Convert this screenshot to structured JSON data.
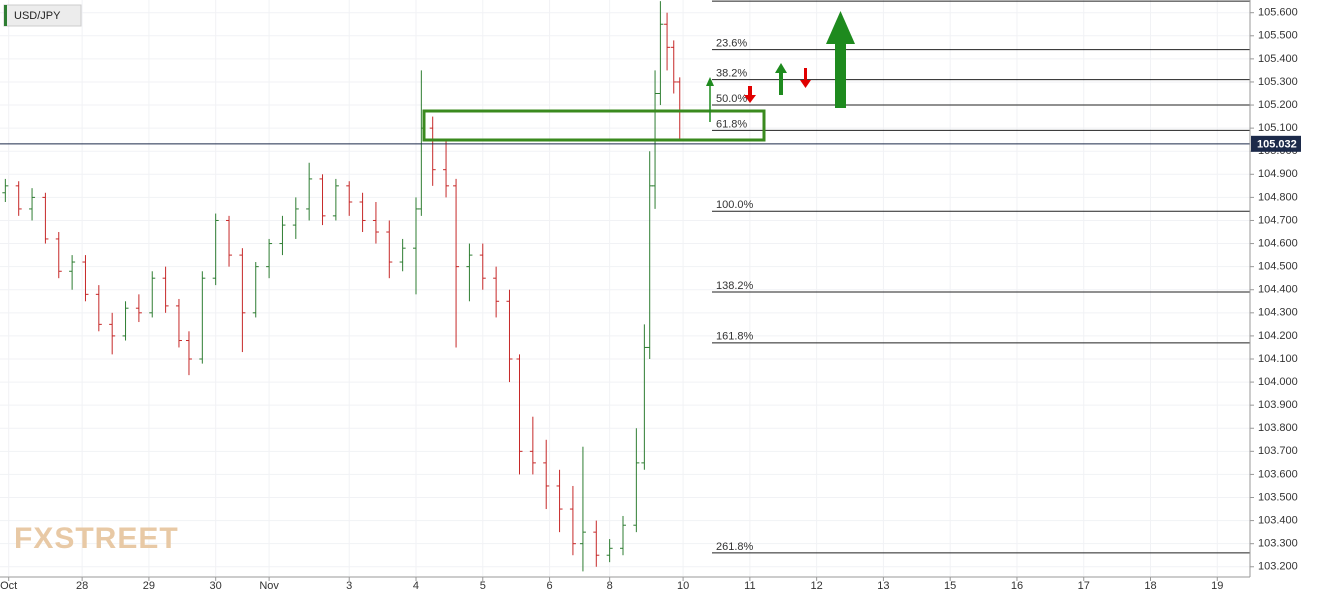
{
  "chart_data": {
    "type": "ohlc",
    "title": "USD/JPY",
    "watermark": "FXSTREET",
    "up_color": "#2e7d32",
    "down_color": "#c62828",
    "x": [
      -0.15,
      0.05,
      0.25,
      0.45,
      0.65,
      0.85,
      1.05,
      1.25,
      1.45,
      1.65,
      1.85,
      2.05,
      2.25,
      2.45,
      2.6,
      2.8,
      3.0,
      3.2,
      3.4,
      3.6,
      3.8,
      4.0,
      4.2,
      4.4,
      4.6,
      4.8,
      5.0,
      5.2,
      5.4,
      5.6,
      5.8,
      6.0,
      6.08,
      6.25,
      6.45,
      6.6,
      6.8,
      7.0,
      7.2,
      7.4,
      7.55,
      7.75,
      7.95,
      8.15,
      8.35,
      8.5,
      8.7,
      8.9,
      9.1,
      9.3,
      9.42,
      9.5,
      9.58,
      9.66,
      9.76,
      9.86,
      9.95
    ],
    "open": [
      104.82,
      104.85,
      104.75,
      104.8,
      104.62,
      104.48,
      104.52,
      104.38,
      104.25,
      104.2,
      104.32,
      104.3,
      104.45,
      104.33,
      104.18,
      104.1,
      104.45,
      104.7,
      104.55,
      104.3,
      104.5,
      104.6,
      104.68,
      104.75,
      104.88,
      104.72,
      104.85,
      104.78,
      104.7,
      104.65,
      104.52,
      104.58,
      104.75,
      105.1,
      104.92,
      104.85,
      104.5,
      104.55,
      104.45,
      104.35,
      104.1,
      103.7,
      103.65,
      103.55,
      103.45,
      103.3,
      103.35,
      103.25,
      103.28,
      103.38,
      103.65,
      104.15,
      104.85,
      105.25,
      105.55,
      105.45,
      105.3
    ],
    "high": [
      104.88,
      104.87,
      104.84,
      104.82,
      104.65,
      104.55,
      104.55,
      104.42,
      104.3,
      104.35,
      104.38,
      104.48,
      104.5,
      104.36,
      104.22,
      104.48,
      104.73,
      104.72,
      104.58,
      104.52,
      104.62,
      104.72,
      104.8,
      104.95,
      104.9,
      104.88,
      104.87,
      104.82,
      104.78,
      104.7,
      104.62,
      104.8,
      105.35,
      105.15,
      105.05,
      104.88,
      104.6,
      104.6,
      104.5,
      104.4,
      104.12,
      103.85,
      103.75,
      103.62,
      103.55,
      103.72,
      103.4,
      103.32,
      103.42,
      103.8,
      104.25,
      105.0,
      105.35,
      105.65,
      105.6,
      105.48,
      105.32
    ],
    "low": [
      104.78,
      104.72,
      104.7,
      104.6,
      104.45,
      104.4,
      104.35,
      104.22,
      104.12,
      104.18,
      104.26,
      104.28,
      104.3,
      104.15,
      104.03,
      104.08,
      104.42,
      104.5,
      104.13,
      104.28,
      104.45,
      104.55,
      104.62,
      104.7,
      104.68,
      104.7,
      104.72,
      104.65,
      104.6,
      104.45,
      104.48,
      104.38,
      104.72,
      104.85,
      104.8,
      104.15,
      104.35,
      104.4,
      104.28,
      104.0,
      103.6,
      103.6,
      103.45,
      103.35,
      103.25,
      103.18,
      103.2,
      103.22,
      103.25,
      103.35,
      103.62,
      104.1,
      104.75,
      105.2,
      105.35,
      105.25,
      105.05
    ],
    "close": [
      104.85,
      104.75,
      104.8,
      104.62,
      104.48,
      104.52,
      104.38,
      104.25,
      104.2,
      104.32,
      104.3,
      104.45,
      104.33,
      104.18,
      104.1,
      104.45,
      104.7,
      104.55,
      104.3,
      104.5,
      104.6,
      104.68,
      104.75,
      104.88,
      104.72,
      104.85,
      104.78,
      104.7,
      104.65,
      104.52,
      104.58,
      104.75,
      105.1,
      104.92,
      104.85,
      104.5,
      104.55,
      104.45,
      104.35,
      104.1,
      103.7,
      103.65,
      103.55,
      103.45,
      103.3,
      103.35,
      103.25,
      103.28,
      103.38,
      103.65,
      104.15,
      104.85,
      105.25,
      105.55,
      105.45,
      105.3,
      105.05
    ],
    "last_price": 105.032,
    "last_price_label": "105.032",
    "fib_levels": [
      105.65,
      105.44,
      105.31,
      105.2,
      105.09,
      104.74,
      104.39,
      104.17,
      103.26
    ],
    "fib_labels": [
      null,
      "23.6%",
      "38.2%",
      "50.0%",
      "61.8%",
      "100.0%",
      "138.2%",
      "161.8%",
      "261.8%"
    ],
    "xlim": [
      -0.23,
      18.49
    ],
    "ylim": [
      103.16,
      105.655
    ],
    "xticks": [
      {
        "value": -0.1,
        "label": "Oct"
      },
      {
        "value": 1,
        "label": "28"
      },
      {
        "value": 2,
        "label": "29"
      },
      {
        "value": 3,
        "label": "30"
      },
      {
        "value": 3.8,
        "label": "Nov"
      },
      {
        "value": 5,
        "label": "3"
      },
      {
        "value": 6,
        "label": "4"
      },
      {
        "value": 7,
        "label": "5"
      },
      {
        "value": 8,
        "label": "6"
      },
      {
        "value": 8.9,
        "label": "8"
      },
      {
        "value": 10,
        "label": "10"
      },
      {
        "value": 11,
        "label": "11"
      },
      {
        "value": 12,
        "label": "12"
      },
      {
        "value": 13,
        "label": "13"
      },
      {
        "value": 14,
        "label": "15"
      },
      {
        "value": 15,
        "label": "16"
      },
      {
        "value": 16,
        "label": "17"
      },
      {
        "value": 17,
        "label": "18"
      },
      {
        "value": 18,
        "label": "19"
      }
    ],
    "yticks": [
      {
        "value": 103.2,
        "label": "103.200"
      },
      {
        "value": 103.3,
        "label": "103.300"
      },
      {
        "value": 103.4,
        "label": "103.400"
      },
      {
        "value": 103.5,
        "label": "103.500"
      },
      {
        "value": 103.6,
        "label": "103.600"
      },
      {
        "value": 103.7,
        "label": "103.700"
      },
      {
        "value": 103.8,
        "label": "103.800"
      },
      {
        "value": 103.9,
        "label": "103.900"
      },
      {
        "value": 104.0,
        "label": "104.000"
      },
      {
        "value": 104.1,
        "label": "104.100"
      },
      {
        "value": 104.2,
        "label": "104.200"
      },
      {
        "value": 104.3,
        "label": "104.300"
      },
      {
        "value": 104.4,
        "label": "104.400"
      },
      {
        "value": 104.5,
        "label": "104.500"
      },
      {
        "value": 104.6,
        "label": "104.600"
      },
      {
        "value": 104.7,
        "label": "104.700"
      },
      {
        "value": 104.8,
        "label": "104.800"
      },
      {
        "value": 104.9,
        "label": "104.900"
      },
      {
        "value": 105.0,
        "label": "105.000"
      },
      {
        "value": 105.1,
        "label": "105.100"
      },
      {
        "value": 105.2,
        "label": "105.200"
      },
      {
        "value": 105.3,
        "label": "105.300"
      },
      {
        "value": 105.4,
        "label": "105.400"
      },
      {
        "value": 105.5,
        "label": "105.500"
      },
      {
        "value": 105.6,
        "label": "105.600"
      }
    ],
    "grid": true
  }
}
